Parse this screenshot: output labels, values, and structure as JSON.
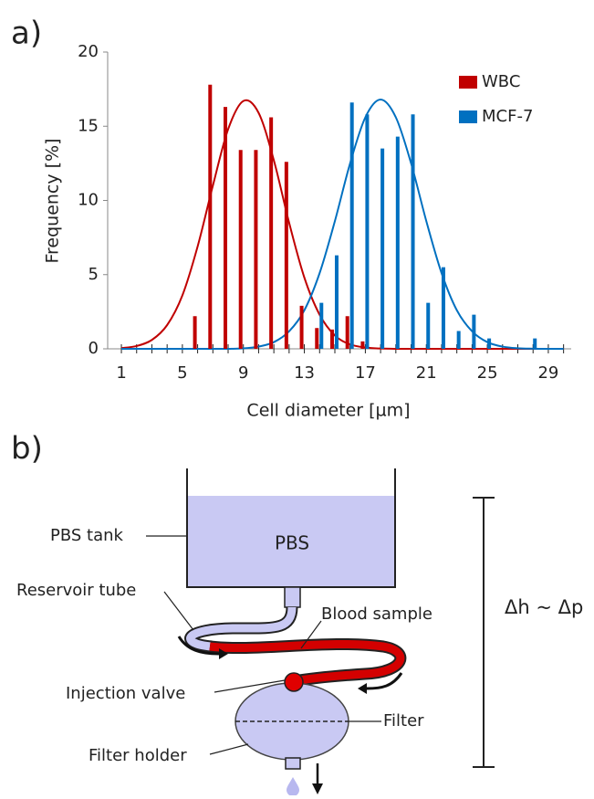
{
  "panel_a": {
    "label": "a)"
  },
  "chart_data": {
    "type": "bar",
    "x_label": "Cell diameter [µm]",
    "y_label": "Frequency [%]",
    "series": [
      {
        "name": "WBC",
        "color": "#c00000",
        "x": [
          6,
          7,
          8,
          9,
          10,
          11,
          12,
          13,
          14,
          15,
          16,
          17
        ],
        "values": [
          2.2,
          17.8,
          16.3,
          13.4,
          13.4,
          15.6,
          12.6,
          2.9,
          1.4,
          1.3,
          2.2,
          0.5
        ]
      },
      {
        "name": "MCF-7",
        "color": "#0070c0",
        "x": [
          14,
          15,
          16,
          17,
          18,
          19,
          20,
          21,
          22,
          23,
          24,
          25,
          26,
          27,
          28
        ],
        "values": [
          3.1,
          6.3,
          16.6,
          15.8,
          13.5,
          14.3,
          15.8,
          3.1,
          5.5,
          1.2,
          2.3,
          0.7,
          0,
          0,
          0.7
        ]
      }
    ],
    "fit_curves": [
      {
        "color": "#c00000",
        "x": [
          1,
          2,
          3,
          4,
          5,
          6,
          7,
          8,
          9,
          10,
          11,
          12,
          13,
          14,
          15,
          16,
          17,
          18,
          19,
          20,
          21,
          22,
          23,
          24,
          25,
          26,
          27,
          28,
          29,
          30
        ],
        "values": [
          0.05,
          0.19,
          0.6,
          1.6,
          3.6,
          6.9,
          11,
          14.8,
          16.7,
          15.9,
          12.7,
          8.5,
          4.8,
          2.3,
          0.9,
          0.3,
          0.09,
          0.02,
          0,
          0,
          0,
          0,
          0,
          0,
          0,
          0,
          0,
          0,
          0,
          0
        ]
      },
      {
        "color": "#0070c0",
        "x": [
          1,
          2,
          3,
          4,
          5,
          6,
          7,
          8,
          9,
          10,
          11,
          12,
          13,
          14,
          15,
          16,
          17,
          18,
          19,
          20,
          21,
          22,
          23,
          24,
          25,
          26,
          27,
          28,
          29,
          30
        ],
        "values": [
          0,
          0,
          0,
          0,
          0,
          0,
          0,
          0,
          0.03,
          0.15,
          0.45,
          1.18,
          2.6,
          5.1,
          8.6,
          12.5,
          15.6,
          16.8,
          15.6,
          12.5,
          8.6,
          5.1,
          2.6,
          1.18,
          0.45,
          0.15,
          0.04,
          0.01,
          0,
          0
        ]
      }
    ],
    "xlim": [
      0.1,
      30.5
    ],
    "xticks": [
      1,
      5,
      9,
      13,
      17,
      21,
      25,
      29
    ],
    "xminor_ticks": [
      2,
      3,
      4,
      6,
      7,
      8,
      10,
      11,
      12,
      14,
      15,
      16,
      18,
      19,
      20,
      22,
      23,
      24,
      26,
      27,
      28,
      30
    ],
    "ylim": [
      0,
      20
    ],
    "yticks": [
      0,
      5,
      10,
      15,
      20
    ],
    "grid": false,
    "legend": "top-right"
  },
  "panel_b": {
    "label": "b)",
    "tank_text": "PBS",
    "pbs_tank": "PBS tank",
    "reservoir_tube": "Reservoir tube",
    "blood_sample": "Blood sample",
    "injection_valve": "Injection valve",
    "filter": "Filter",
    "filter_holder": "Filter holder",
    "relation": "Δh ~ Δp"
  }
}
